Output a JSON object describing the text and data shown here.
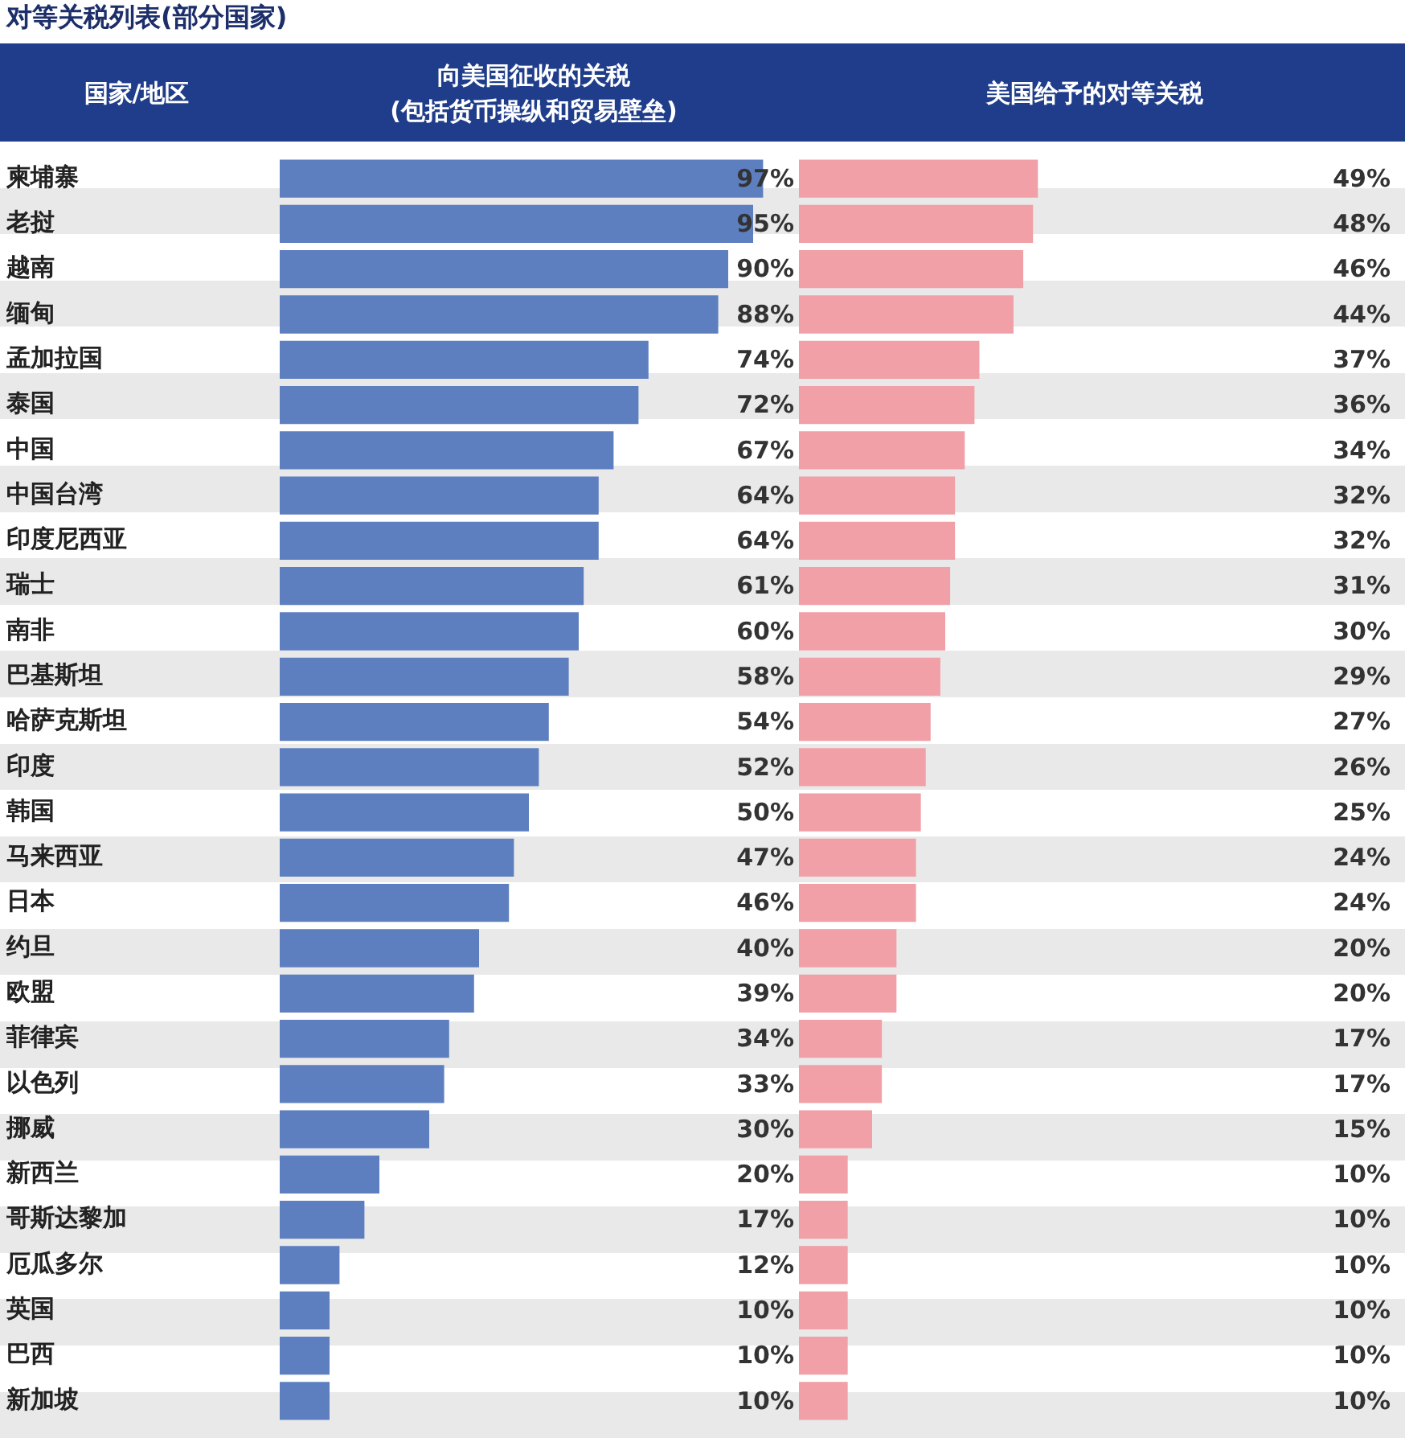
{
  "chart_data": [
    {
      "type": "bar",
      "orientation": "horizontal",
      "title": "对等关税列表(部分国家)",
      "ylabel": "国家/地区",
      "xlabel": "向美国征收的关税\n(包括货币操纵和贸易壁垒)",
      "categories": [
        "柬埔寨",
        "老挝",
        "越南",
        "缅甸",
        "孟加拉国",
        "泰国",
        "中国",
        "中国台湾",
        "印度尼西亚",
        "瑞士",
        "南非",
        "巴基斯坦",
        "哈萨克斯坦",
        "印度",
        "韩国",
        "马来西亚",
        "日本",
        "约旦",
        "欧盟",
        "菲律宾",
        "以色列",
        "挪威",
        "新西兰",
        "哥斯达黎加",
        "厄瓜多尔",
        "英国",
        "巴西",
        "新加坡"
      ],
      "values": [
        97,
        95,
        90,
        88,
        74,
        72,
        67,
        64,
        64,
        61,
        60,
        58,
        54,
        52,
        50,
        47,
        46,
        40,
        39,
        34,
        33,
        30,
        20,
        17,
        12,
        10,
        10,
        10
      ],
      "value_labels": [
        "97%",
        "95%",
        "90%",
        "88%",
        "74%",
        "72%",
        "67%",
        "64%",
        "64%",
        "61%",
        "60%",
        "58%",
        "54%",
        "52%",
        "50%",
        "47%",
        "46%",
        "40%",
        "39%",
        "34%",
        "33%",
        "30%",
        "20%",
        "17%",
        "12%",
        "10%",
        "10%",
        "10%"
      ],
      "color": "#5d7fc0",
      "tick_labels": "y",
      "legend": false
    },
    {
      "type": "bar",
      "orientation": "horizontal",
      "xlabel": "美国给予的对等关税",
      "categories": [
        null,
        null,
        null,
        null,
        null,
        null,
        null,
        null,
        null,
        null,
        null,
        null,
        null,
        null,
        null,
        null,
        null,
        null,
        null,
        null,
        null,
        null,
        null,
        null,
        null,
        null,
        null,
        null
      ],
      "values": [
        49,
        48,
        46,
        44,
        37,
        36,
        34,
        32,
        32,
        31,
        30,
        29,
        27,
        26,
        25,
        24,
        24,
        20,
        20,
        17,
        17,
        15,
        10,
        10,
        10,
        10,
        10,
        10
      ],
      "value_labels": [
        "49%",
        "48%",
        "46%",
        "44%",
        "37%",
        "36%",
        "34%",
        "32%",
        "32%",
        "31%",
        "30%",
        "29%",
        "27%",
        "26%",
        "25%",
        "24%",
        "24%",
        "20%",
        "20%",
        "17%",
        "17%",
        "15%",
        "10%",
        "10%",
        "10%",
        "10%",
        "10%",
        "10%"
      ],
      "color": "#f0a0a6",
      "tick_labels": "y",
      "legend": false
    }
  ]
}
